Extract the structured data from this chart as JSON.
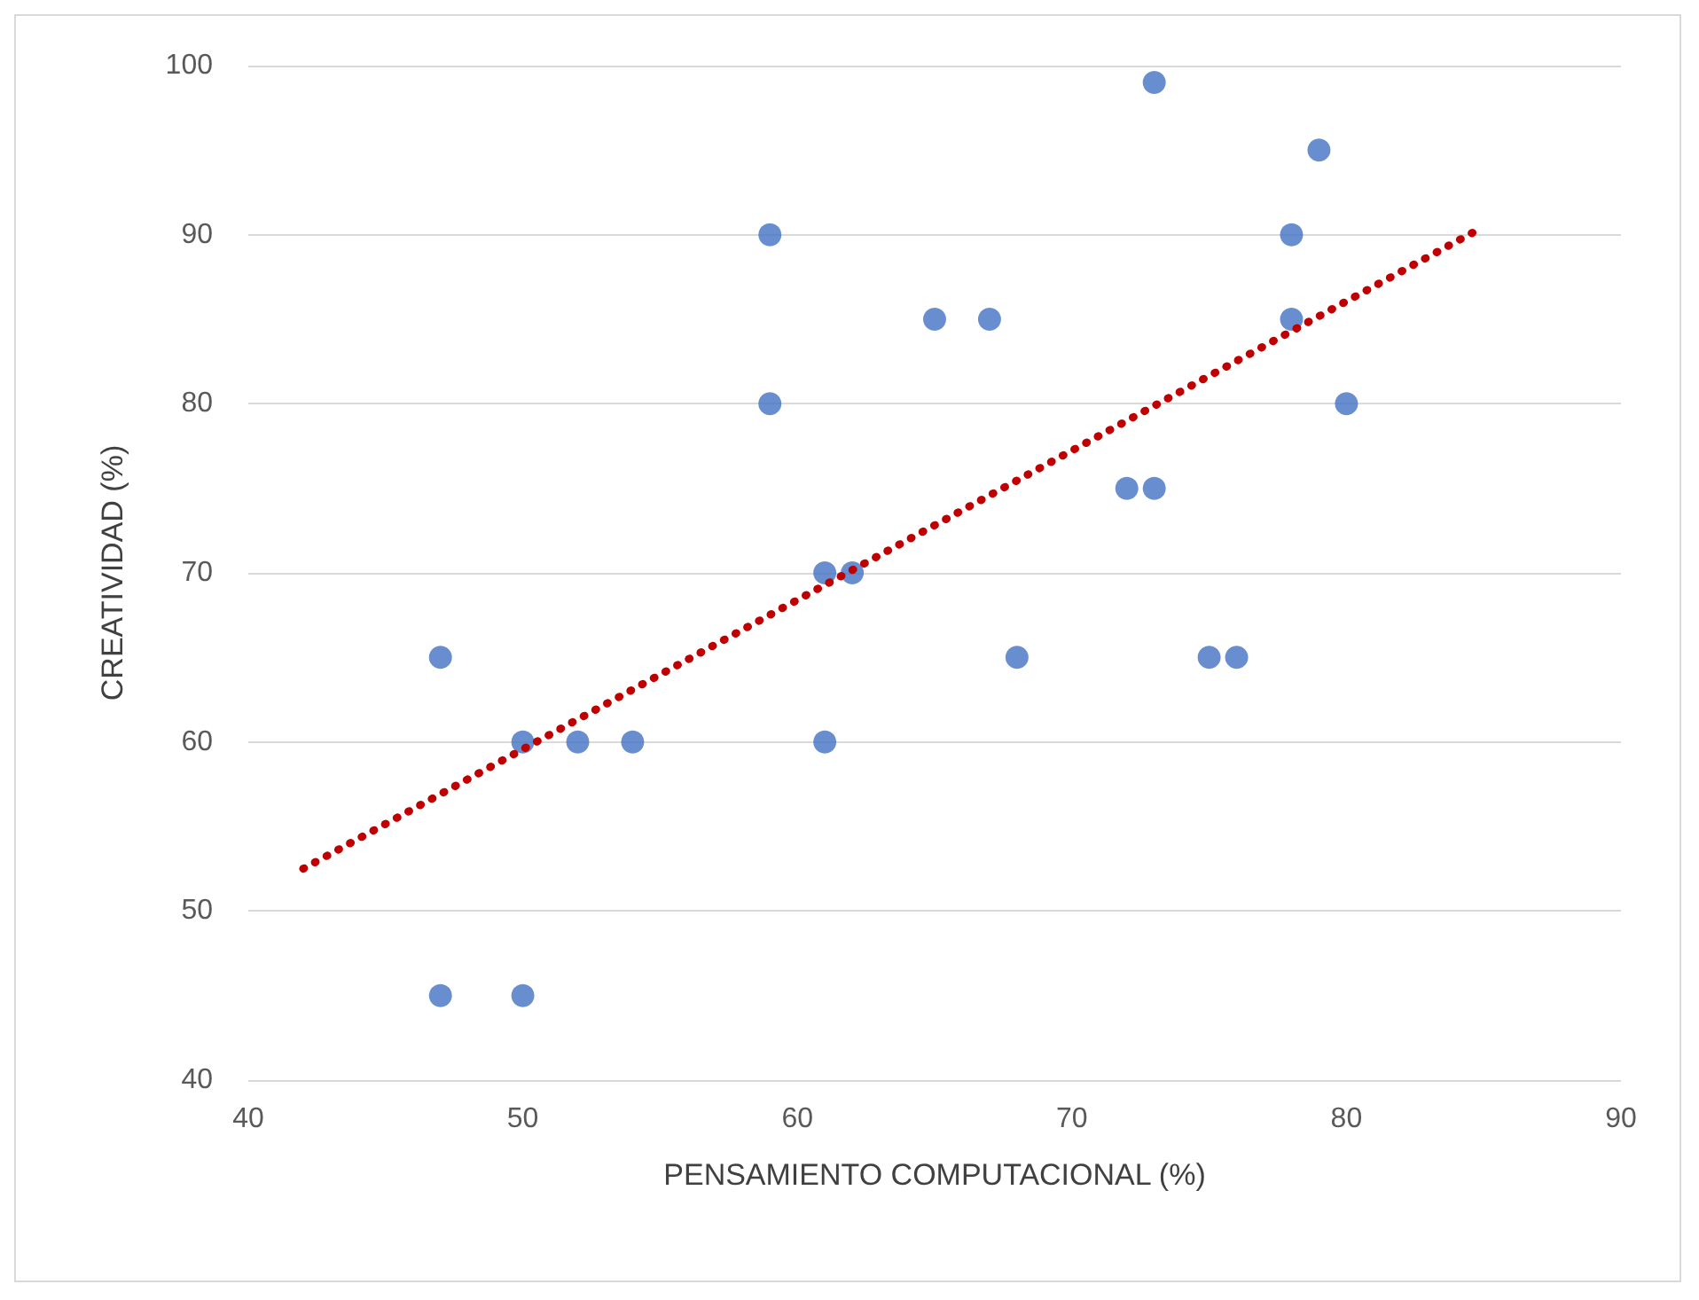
{
  "chart_data": {
    "type": "scatter",
    "xlabel": "PENSAMIENTO COMPUTACIONAL (%)",
    "ylabel": "CREATIVIDAD (%)",
    "x": [
      47,
      47,
      50,
      50,
      52,
      54,
      59,
      59,
      61,
      61,
      62,
      65,
      67,
      68,
      72,
      73,
      73,
      75,
      76,
      78,
      78,
      79,
      80
    ],
    "series": [
      {
        "color": "#4472c4",
        "values": [
          65,
          45,
          60,
          45,
          60,
          60,
          90,
          80,
          70,
          60,
          70,
          85,
          85,
          65,
          75,
          75,
          99,
          65,
          65,
          90,
          85,
          95,
          80
        ],
        "marker": "circle"
      },
      {
        "type": "line",
        "color": "#c00000",
        "x": [
          42,
          84.8
        ],
        "values": [
          52.5,
          90.3
        ],
        "line_style": "dotted",
        "marker": "none"
      }
    ],
    "xlim": [
      40,
      90
    ],
    "xticks": [
      40,
      50,
      60,
      70,
      80,
      90
    ],
    "ylim": [
      40,
      100
    ],
    "yticks": [
      40,
      50,
      60,
      70,
      80,
      90,
      100
    ],
    "grid": "y"
  }
}
